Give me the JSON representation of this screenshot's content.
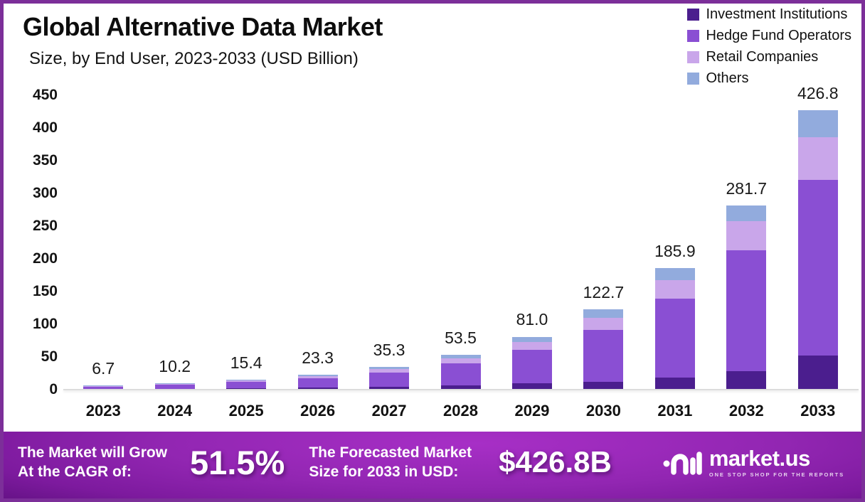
{
  "page": {
    "border_color": "#7c2f99",
    "background": "#ffffff"
  },
  "header": {
    "title": "Global Alternative Data Market",
    "subtitle": "Size, by End User, 2023-2033 (USD Billion)"
  },
  "legend": {
    "position": "top-right",
    "items": [
      {
        "label": "Investment Institutions",
        "color": "#4b1e8e"
      },
      {
        "label": "Hedge Fund Operators",
        "color": "#8a4fd3"
      },
      {
        "label": "Retail Companies",
        "color": "#c9a6ea"
      },
      {
        "label": "Others",
        "color": "#92abdd"
      }
    ]
  },
  "chart_data": {
    "type": "bar",
    "variant": "stacked",
    "title": "Global Alternative Data Market Size, by End User, 2023-2033 (USD Billion)",
    "categories": [
      "2023",
      "2024",
      "2025",
      "2026",
      "2027",
      "2028",
      "2029",
      "2030",
      "2031",
      "2032",
      "2033"
    ],
    "series": [
      {
        "name": "Investment Institutions",
        "color": "#4b1e8e",
        "values": [
          0.8,
          1.2,
          1.9,
          2.8,
          4.2,
          6.4,
          9.5,
          12.5,
          18.6,
          28.2,
          52.5
        ]
      },
      {
        "name": "Hedge Fund Operators",
        "color": "#8a4fd3",
        "values": [
          4.2,
          6.4,
          9.7,
          14.7,
          22.2,
          33.7,
          51.0,
          78.5,
          120.3,
          184.5,
          268.3
        ]
      },
      {
        "name": "Retail Companies",
        "color": "#c9a6ea",
        "values": [
          1.0,
          1.6,
          2.4,
          3.6,
          5.4,
          8.2,
          12.3,
          19.0,
          28.0,
          44.5,
          65.0
        ]
      },
      {
        "name": "Others",
        "color": "#92abdd",
        "values": [
          0.7,
          1.0,
          1.4,
          2.2,
          3.5,
          5.2,
          8.2,
          12.7,
          19.0,
          24.5,
          41.0
        ]
      }
    ],
    "totals": [
      6.7,
      10.2,
      15.4,
      23.3,
      35.3,
      53.5,
      81.0,
      122.7,
      185.9,
      281.7,
      426.8
    ],
    "total_labels": [
      "6.7",
      "10.2",
      "15.4",
      "23.3",
      "35.3",
      "53.5",
      "81.0",
      "122.7",
      "185.9",
      "281.7",
      "426.8"
    ],
    "xlabel": "",
    "ylabel": "",
    "ylim": [
      0,
      450
    ],
    "yticks": [
      0,
      50,
      100,
      150,
      200,
      250,
      300,
      350,
      400,
      450
    ],
    "grid": false,
    "legend_position": "top-right"
  },
  "banner": {
    "cagr_label_line1": "The Market will Grow",
    "cagr_label_line2": "At the CAGR of:",
    "cagr_value": "51.5%",
    "forecast_label_line1": "The Forecasted Market",
    "forecast_label_line2": "Size for 2033 in USD:",
    "forecast_value": "$426.8B",
    "logo_text": "market.us",
    "logo_tagline": "ONE STOP SHOP FOR THE REPORTS"
  }
}
